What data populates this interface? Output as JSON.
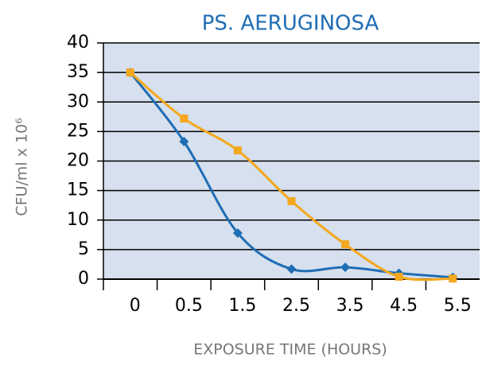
{
  "chart_data": {
    "type": "line",
    "title": "PS. AERUGINOSA",
    "x_label": "EXPOSURE TIME (HOURS)",
    "y_label": "CFU/ml x 10⁶",
    "categories": [
      "0",
      "0.5",
      "1.5",
      "2.5",
      "3.5",
      "4.5",
      "5.5"
    ],
    "series": [
      {
        "color": "#1f6db5",
        "marker": "diamond",
        "values": [
          35,
          23.3,
          7.8,
          1.7,
          2.0,
          1.0,
          0.3
        ]
      },
      {
        "color": "#f4a81d",
        "marker": "square",
        "values": [
          35,
          27.2,
          21.8,
          13.2,
          5.9,
          0.4,
          0.1
        ]
      }
    ],
    "ylim": [
      0,
      40
    ],
    "yticks": [
      0,
      5,
      10,
      15,
      20,
      25,
      30,
      35,
      40
    ],
    "grid": true,
    "smooth": true,
    "plot_background": "#d6e0ee"
  }
}
